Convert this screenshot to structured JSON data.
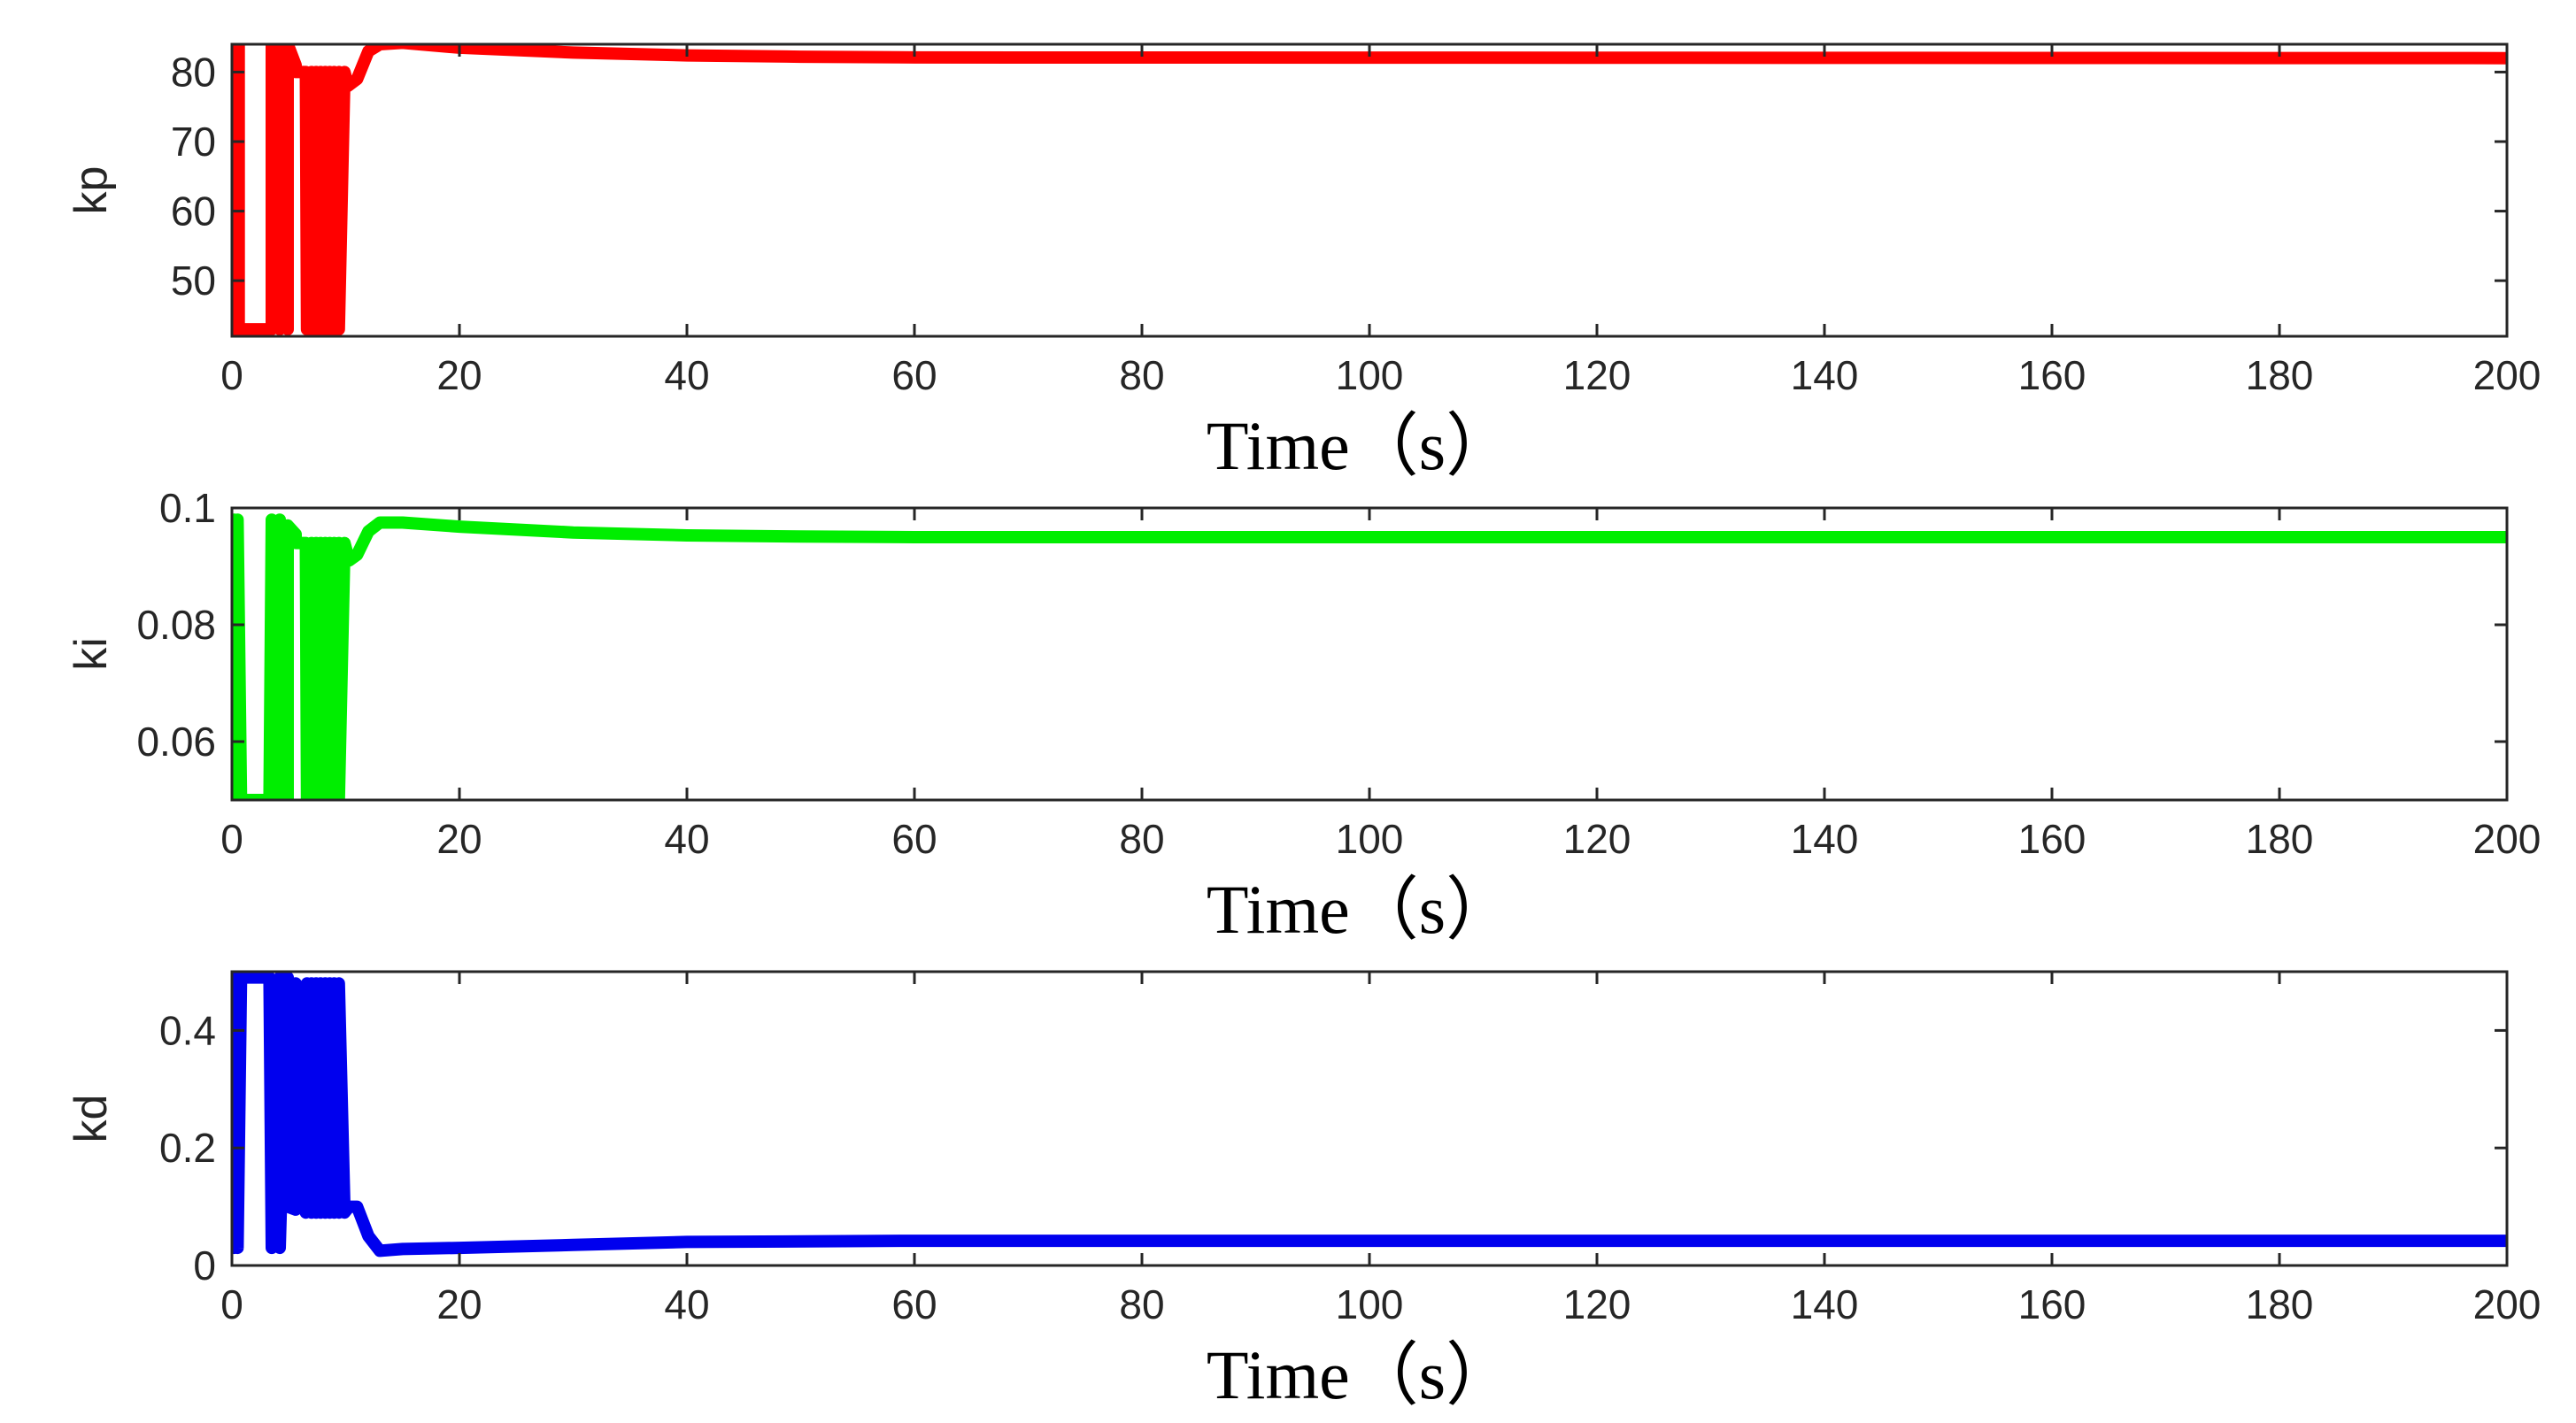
{
  "chart_data": [
    {
      "type": "line",
      "ylabel": "kp",
      "xlabel": "Time（s）",
      "xlim": [
        0,
        200
      ],
      "ylim": [
        42,
        84
      ],
      "xticks": [
        0,
        20,
        40,
        60,
        80,
        100,
        120,
        140,
        160,
        180,
        200
      ],
      "yticks": [
        50,
        60,
        70,
        80
      ],
      "ytick_labels": [
        "50",
        "60",
        "70",
        "80"
      ],
      "color": "#ff0000",
      "grid": false,
      "series": [
        {
          "x": [
            0,
            0.3,
            0.3,
            0.6,
            0.6,
            0.9,
            0.9,
            3.5,
            3.5,
            4.2,
            4.2,
            4.9,
            4.9,
            5.6,
            5.6,
            6.5,
            6.6,
            7.0,
            7.0,
            7.4,
            7.4,
            7.8,
            7.8,
            8.2,
            8.2,
            8.6,
            8.6,
            9.0,
            9.0,
            9.4,
            9.4,
            9.9,
            10.2,
            11.0,
            12.0,
            13.0,
            15.0,
            20.0,
            30.0,
            40.0,
            50.0,
            60.0,
            200.0
          ],
          "y": [
            43,
            84,
            43,
            84,
            43,
            43,
            43,
            43,
            84,
            43,
            84,
            43,
            84,
            81,
            80,
            80,
            43,
            80,
            43,
            80,
            43,
            80,
            43,
            80,
            43,
            80,
            43,
            80,
            43,
            80,
            43,
            80,
            78,
            79,
            83,
            84,
            84.2,
            83.5,
            82.8,
            82.4,
            82.2,
            82.1,
            82.0
          ]
        }
      ]
    },
    {
      "type": "line",
      "ylabel": "ki",
      "xlabel": "Time（s）",
      "xlim": [
        0,
        200
      ],
      "ylim": [
        0.05,
        0.1
      ],
      "xticks": [
        0,
        20,
        40,
        60,
        80,
        100,
        120,
        140,
        160,
        180,
        200
      ],
      "yticks": [
        0.06,
        0.08,
        0.1
      ],
      "ytick_labels": [
        "0.06",
        "0.08",
        "0.1"
      ],
      "color": "#00ee00",
      "grid": false,
      "series": [
        {
          "x": [
            0,
            0.2,
            0.3,
            0.5,
            0.8,
            3.3,
            3.5,
            4.2,
            4.2,
            4.9,
            4.9,
            5.6,
            5.6,
            6.5,
            6.6,
            7.0,
            7.0,
            7.4,
            7.4,
            7.8,
            7.8,
            8.2,
            8.2,
            8.6,
            8.6,
            9.0,
            9.0,
            9.4,
            9.4,
            9.9,
            10.3,
            11.0,
            12.0,
            13.0,
            15.0,
            20.0,
            30.0,
            40.0,
            50.0,
            60.0,
            200.0
          ],
          "y": [
            0.072,
            0.098,
            0.05,
            0.098,
            0.05,
            0.05,
            0.098,
            0.05,
            0.098,
            0.05,
            0.097,
            0.0955,
            0.094,
            0.094,
            0.05,
            0.094,
            0.05,
            0.094,
            0.05,
            0.094,
            0.05,
            0.094,
            0.05,
            0.094,
            0.05,
            0.094,
            0.05,
            0.094,
            0.05,
            0.094,
            0.091,
            0.092,
            0.096,
            0.0975,
            0.0975,
            0.0968,
            0.0958,
            0.0953,
            0.0951,
            0.095,
            0.095
          ]
        }
      ]
    },
    {
      "type": "line",
      "ylabel": "kd",
      "xlabel": "Time（s）",
      "xlim": [
        0,
        200
      ],
      "ylim": [
        0,
        0.5
      ],
      "xticks": [
        0,
        20,
        40,
        60,
        80,
        100,
        120,
        140,
        160,
        180,
        200
      ],
      "yticks": [
        0,
        0.2,
        0.4
      ],
      "ytick_labels": [
        "0",
        "0.2",
        "0.4"
      ],
      "color": "#0000ee",
      "grid": false,
      "series": [
        {
          "x": [
            0,
            0.2,
            0.3,
            0.5,
            0.8,
            3.3,
            3.5,
            4.2,
            4.2,
            4.9,
            4.9,
            5.6,
            5.6,
            6.5,
            6.6,
            7.0,
            7.0,
            7.4,
            7.4,
            7.8,
            7.8,
            8.2,
            8.2,
            8.6,
            8.6,
            9.0,
            9.0,
            9.4,
            9.4,
            9.9,
            10.3,
            11.0,
            12.0,
            13.0,
            15.0,
            20.0,
            30.0,
            40.0,
            60.0,
            200.0
          ],
          "y": [
            0.24,
            0.03,
            0.49,
            0.03,
            0.49,
            0.49,
            0.03,
            0.49,
            0.03,
            0.49,
            0.1,
            0.095,
            0.48,
            0.09,
            0.48,
            0.09,
            0.48,
            0.09,
            0.48,
            0.09,
            0.48,
            0.09,
            0.48,
            0.09,
            0.48,
            0.09,
            0.48,
            0.09,
            0.48,
            0.09,
            0.1,
            0.1,
            0.05,
            0.025,
            0.028,
            0.03,
            0.035,
            0.04,
            0.042,
            0.042
          ]
        }
      ]
    }
  ]
}
